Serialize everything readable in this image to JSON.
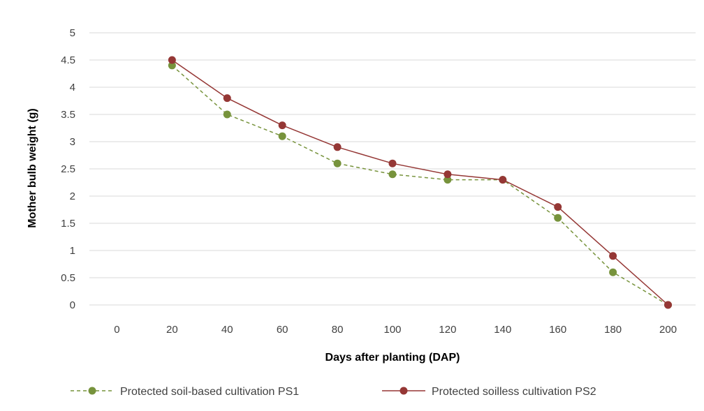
{
  "chart_data": {
    "type": "line",
    "title": "",
    "xlabel": "Days after planting (DAP)",
    "ylabel": "Mother bulb weight (g)",
    "categories": [
      "0",
      "20",
      "40",
      "60",
      "80",
      "100",
      "120",
      "140",
      "160",
      "180",
      "200"
    ],
    "yticks": [
      "0",
      "0.5",
      "1",
      "1.5",
      "2",
      "2.5",
      "3",
      "3.5",
      "4",
      "4.5",
      "5"
    ],
    "ylim": [
      0,
      5
    ],
    "grid": "horizontal",
    "legend_position": "bottom",
    "series": [
      {
        "name": "Protected soil-based cultivation PS1",
        "color": "#77933c",
        "line_style": "dashed",
        "marker": "circle",
        "values": [
          null,
          4.4,
          3.5,
          3.1,
          2.6,
          2.4,
          2.3,
          2.3,
          1.6,
          0.6,
          0
        ]
      },
      {
        "name": "Protected soilless cultivation PS2",
        "color": "#953735",
        "line_style": "solid",
        "marker": "circle",
        "values": [
          null,
          4.5,
          3.8,
          3.3,
          2.9,
          2.6,
          2.4,
          2.3,
          1.8,
          0.9,
          0
        ]
      }
    ]
  }
}
